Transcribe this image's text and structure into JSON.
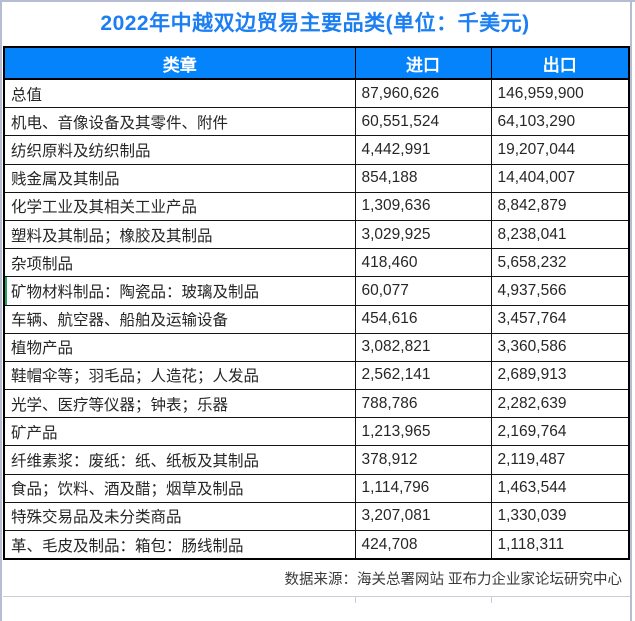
{
  "chart_data": {
    "type": "table",
    "title": "2022年中越双边贸易主要品类(单位：千美元)",
    "columns": [
      "类章",
      "进口",
      "出口"
    ],
    "rows": [
      [
        "总值",
        "87,960,626",
        "146,959,900"
      ],
      [
        "机电、音像设备及其零件、附件",
        "60,551,524",
        "64,103,290"
      ],
      [
        "纺织原料及纺织制品",
        "4,442,991",
        "19,207,044"
      ],
      [
        "贱金属及其制品",
        "854,188",
        "14,404,007"
      ],
      [
        "化学工业及其相关工业产品",
        "1,309,636",
        "8,842,879"
      ],
      [
        "塑料及其制品；橡胶及其制品",
        "3,029,925",
        "8,238,041"
      ],
      [
        "杂项制品",
        "418,460",
        "5,658,232"
      ],
      [
        "矿物材料制品：陶瓷品：玻璃及制品",
        "60,077",
        "4,937,566"
      ],
      [
        "车辆、航空器、船舶及运输设备",
        "454,616",
        "3,457,764"
      ],
      [
        "植物产品",
        "3,082,821",
        "3,360,586"
      ],
      [
        "鞋帽伞等；羽毛品；人造花；人发品",
        "2,562,141",
        "2,689,913"
      ],
      [
        "光学、医疗等仪器；钟表；乐器",
        "788,786",
        "2,282,639"
      ],
      [
        "矿产品",
        "1,213,965",
        "2,169,764"
      ],
      [
        "纤维素浆：废纸：纸、纸板及其制品",
        "378,912",
        "2,119,487"
      ],
      [
        "食品；饮料、酒及醋；烟草及制品",
        "1,114,796",
        "1,463,544"
      ],
      [
        "特殊交易品及未分类商品",
        "3,207,081",
        "1,330,039"
      ],
      [
        "革、毛皮及制品：箱包：肠线制品",
        "424,708",
        "1,118,311"
      ]
    ],
    "source_note": "数据来源：海关总署网站 亚布力企业家论坛研究中心"
  },
  "marker": {
    "row_index": 7,
    "color": "#21a366"
  },
  "colors": {
    "title_text": "#1b7ff2",
    "header_bg": "#0583fb",
    "header_text": "#ffffff",
    "marker_green": "#21a366",
    "frame_gray": "#b6bcd1"
  }
}
